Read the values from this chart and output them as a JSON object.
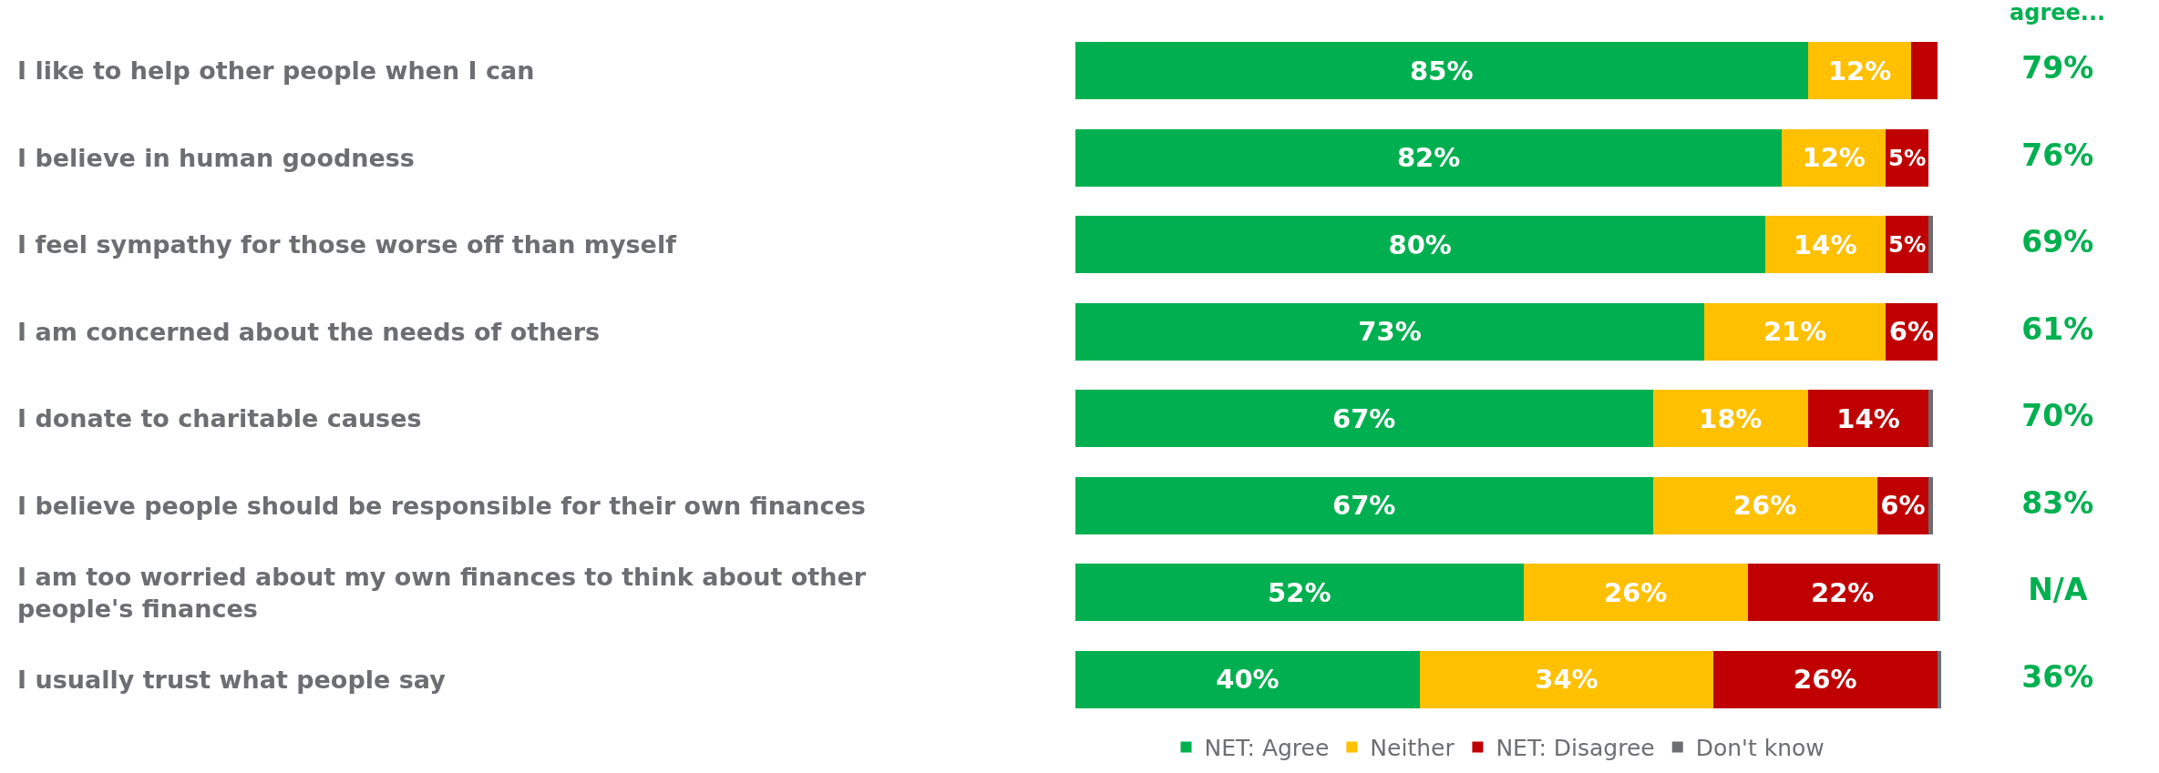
{
  "chart_data": [
    {
      "type": "bar",
      "orientation": "horizontal",
      "stacked": true,
      "categories": [
        "I like to help other people when I can",
        "I believe in human goodness",
        "I feel sympathy for those worse off than myself",
        "I am concerned about the needs of others",
        "I donate to charitable causes",
        "I believe people should be responsible for their own finances",
        "I am too worried about my own finances to think about other people's finances",
        "I usually trust what people say"
      ],
      "series": [
        {
          "name": "NET: Agree",
          "color": "#00b050",
          "values": [
            85,
            82,
            80,
            73,
            67,
            67,
            52,
            40
          ],
          "value_labels": [
            "85%",
            "82%",
            "80%",
            "73%",
            "67%",
            "67%",
            "52%",
            "40%"
          ]
        },
        {
          "name": "Neither",
          "color": "#ffc000",
          "values": [
            12,
            12,
            14,
            21,
            18,
            26,
            26,
            34
          ],
          "value_labels": [
            "12%",
            "12%",
            "14%",
            "21%",
            "18%",
            "26%",
            "26%",
            "34%"
          ]
        },
        {
          "name": "NET: Disagree",
          "color": "#c00000",
          "values": [
            3,
            5,
            5,
            6,
            14,
            6,
            22,
            26
          ],
          "value_labels": [
            null,
            "5%",
            "5%",
            "6%",
            "14%",
            "6%",
            "22%",
            "26%"
          ]
        },
        {
          "name": "Don't know",
          "color": "#6d6e71",
          "values": [
            null,
            null,
            0.5,
            null,
            0.5,
            0.5,
            0.3,
            0.5
          ],
          "value_labels": [
            null,
            null,
            null,
            null,
            null,
            null,
            null,
            null
          ]
        }
      ],
      "xlim": [
        0,
        101
      ],
      "tick_labels": "y",
      "legend": "bottom"
    },
    {
      "type": "other",
      "title": "agree...",
      "categories": [
        null,
        null,
        null,
        null,
        null,
        null,
        null,
        null
      ],
      "value_labels": [
        "79%",
        "76%",
        "69%",
        "61%",
        "70%",
        "83%",
        "N/A",
        "36%"
      ],
      "color": "#00b050"
    }
  ]
}
